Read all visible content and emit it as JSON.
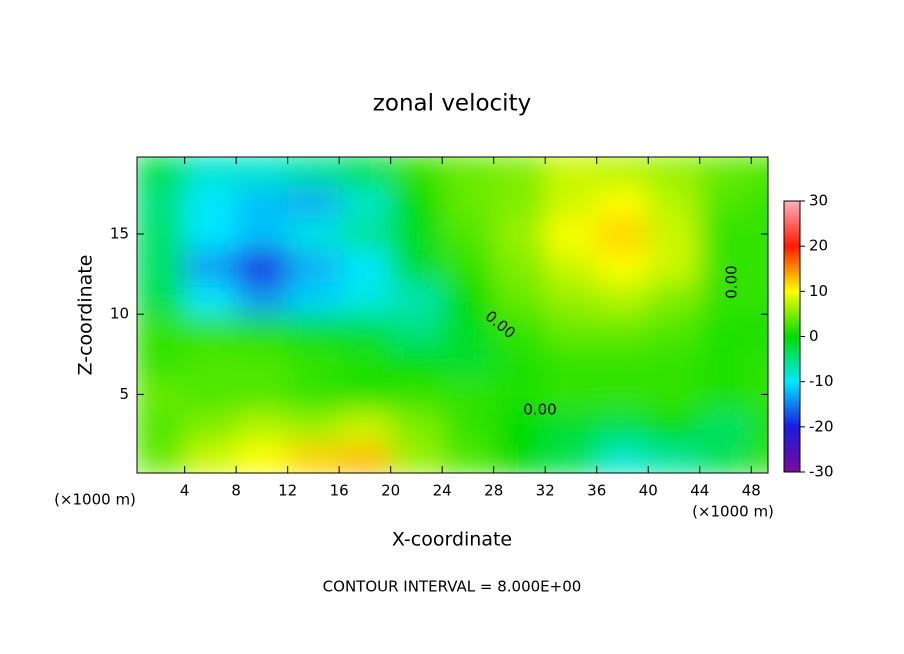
{
  "chart_data": {
    "type": "heatmap",
    "title": "zonal velocity",
    "x_label": "X-coordinate",
    "y_label": "Z-coordinate",
    "x_unit": "(×1000 m)",
    "footer": "CONTOUR INTERVAL = 8.000E+00",
    "annotations": [
      "0.00",
      "0.00",
      "0.00"
    ],
    "x": [
      2,
      6,
      10,
      14,
      18,
      22,
      26,
      30,
      34,
      38,
      42,
      46,
      50
    ],
    "z": [
      1,
      3,
      5,
      7,
      9,
      11,
      13,
      15,
      17,
      19
    ],
    "values": [
      [
        4,
        8,
        10,
        12,
        13,
        6,
        3,
        0,
        -3,
        -8,
        -6,
        -3,
        2
      ],
      [
        3,
        5,
        7,
        6,
        8,
        5,
        2,
        0,
        -2,
        -3,
        0,
        -4,
        1
      ],
      [
        4,
        3,
        3,
        2,
        1,
        2,
        2,
        1,
        2,
        2,
        2,
        1,
        2
      ],
      [
        2,
        3,
        3,
        2,
        1,
        0,
        -2,
        1,
        2,
        2,
        2,
        1,
        2
      ],
      [
        2,
        2,
        1,
        -1,
        -2,
        -5,
        -1,
        2,
        4,
        4,
        3,
        1,
        1
      ],
      [
        -3,
        -10,
        -14,
        -11,
        -9,
        -7,
        0,
        4,
        6,
        7,
        5,
        2,
        2
      ],
      [
        -4,
        -14,
        -20,
        -13,
        -10,
        -2,
        2,
        5,
        8,
        10,
        8,
        2,
        2
      ],
      [
        -4,
        -10,
        -12,
        -9,
        -6,
        -1,
        3,
        6,
        10,
        12,
        8,
        2,
        2
      ],
      [
        -5,
        -10,
        -12,
        -13,
        -8,
        0,
        4,
        5,
        8,
        10,
        7,
        3,
        2
      ],
      [
        -3,
        -8,
        -8,
        -6,
        -3,
        2,
        4,
        5,
        8,
        7,
        6,
        4,
        3
      ]
    ],
    "xlim": [
      0.3,
      49.3
    ],
    "ylim": [
      0.1,
      19.8
    ],
    "xticks": [
      4,
      8,
      12,
      16,
      20,
      24,
      28,
      32,
      36,
      40,
      44,
      48
    ],
    "yticks": [
      5,
      10,
      15
    ],
    "clim": [
      -30,
      30
    ],
    "cticks": [
      -30,
      -20,
      -10,
      0,
      10,
      20,
      30
    ],
    "colorscale": [
      "#7a0a9a",
      "#1a1ae0",
      "#00e8ff",
      "#00dc00",
      "#ffff00",
      "#ff1a00",
      "#ffb0c0"
    ]
  }
}
